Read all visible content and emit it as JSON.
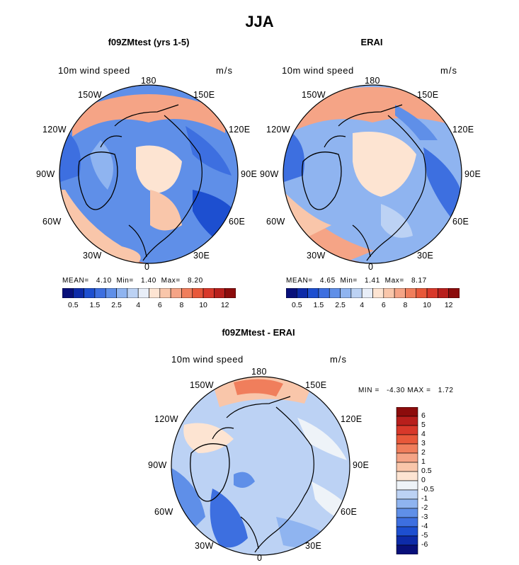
{
  "figure": {
    "title": "JJA",
    "panels": [
      {
        "title": "f09ZMtest (yrs 1-5)",
        "variable": "10m wind speed",
        "units": "m/s",
        "stats": {
          "mean_label": "MEAN=",
          "mean": "4.10",
          "min_label": "Min=",
          "min": "1.40",
          "max_label": "Max=",
          "max": "8.20"
        }
      },
      {
        "title": "ERAI",
        "variable": "10m wind speed",
        "units": "m/s",
        "stats": {
          "mean_label": "MEAN=",
          "mean": "4.65",
          "min_label": "Min=",
          "min": "1.41",
          "max_label": "Max=",
          "max": "8.17"
        }
      },
      {
        "title": "f09ZMtest - ERAI",
        "variable": "10m wind speed",
        "units": "m/s",
        "stats": {
          "min_label": "MIN =",
          "min": "-4.30",
          "max_label": "MAX =",
          "max": "1.72"
        }
      }
    ],
    "longitude_labels": {
      "top": "180",
      "bottom": "0",
      "left_upper": "150W",
      "left_mid_upper": "120W",
      "left_mid": "90W",
      "left_mid_lower": "60W",
      "left_lower": "30W",
      "right_upper": "150E",
      "right_mid_upper": "120E",
      "right_mid": "90E",
      "right_mid_lower": "60E",
      "right_lower": "30E"
    },
    "abs_colorbar": {
      "colors": [
        "#08107a",
        "#0d2ba8",
        "#1d4fd0",
        "#3d6fe0",
        "#5f8fe8",
        "#8fb4f0",
        "#bcd2f4",
        "#e8eef8",
        "#fde4d2",
        "#f9c6aa",
        "#f5a486",
        "#f07e5c",
        "#e8583a",
        "#d8382a",
        "#b81f1c",
        "#8c0c0c"
      ],
      "tick_labels": [
        "0.5",
        "1.5",
        "2.5",
        "4",
        "6",
        "8",
        "10",
        "12"
      ]
    },
    "diff_colorbar": {
      "colors": [
        "#08107a",
        "#0d2ba8",
        "#1d4fd0",
        "#3d6fe0",
        "#5f8fe8",
        "#8fb4f0",
        "#bcd2f4",
        "#eef3f8",
        "#fde4d2",
        "#f9c6aa",
        "#f5a486",
        "#f07e5c",
        "#e8583a",
        "#d8382a",
        "#b81f1c",
        "#8c0c0c"
      ],
      "tick_labels": [
        "6",
        "5",
        "4",
        "3",
        "2",
        "1",
        "0.5",
        "0",
        "-0.5",
        "-1",
        "-2",
        "-3",
        "-4",
        "-5",
        "-6"
      ]
    }
  }
}
